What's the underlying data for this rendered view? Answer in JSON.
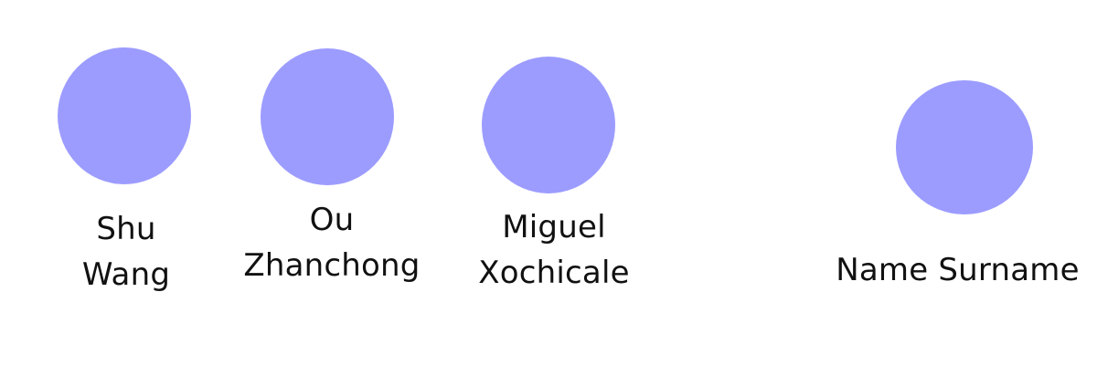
{
  "people": [
    {
      "name_line1": "Shu",
      "name_line2": "Wang",
      "avatar_color": "#9c9cff"
    },
    {
      "name_line1": "Ou",
      "name_line2": "Zhanchong",
      "avatar_color": "#9c9cff"
    },
    {
      "name_line1": "Miguel",
      "name_line2": "Xochicale",
      "avatar_color": "#9c9cff"
    },
    {
      "name_line1": "Name Surname",
      "avatar_color": "#9c9cff"
    }
  ]
}
